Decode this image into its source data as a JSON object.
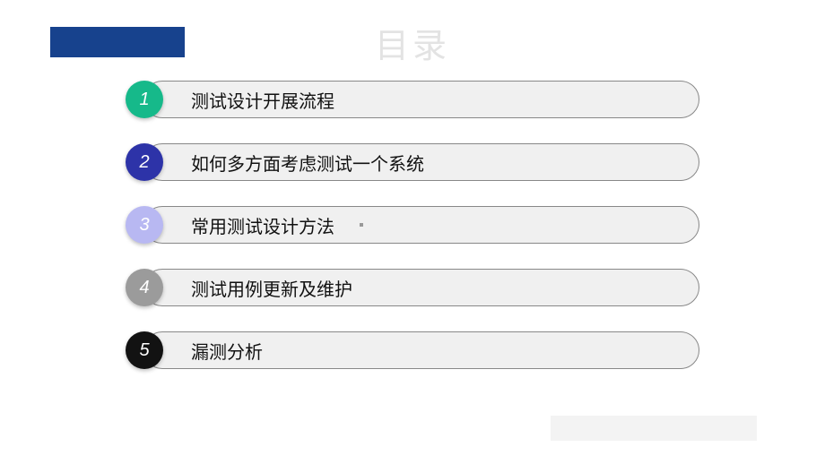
{
  "header": {
    "bar_color": "#17428d",
    "title": "目录",
    "title_color": "#e3e3e3"
  },
  "toc": {
    "pill_bg": "#f0f0f0",
    "pill_border": "#888888",
    "items": [
      {
        "num": "1",
        "label": "测试设计开展流程",
        "circle_color": "#16b98a"
      },
      {
        "num": "2",
        "label": "如何多方面考虑测试一个系统",
        "circle_color": "#2d33a8"
      },
      {
        "num": "3",
        "label": "常用测试设计方法",
        "circle_color": "#b8b8f2",
        "has_dot": true
      },
      {
        "num": "4",
        "label": "测试用例更新及维护",
        "circle_color": "#9b9b9b"
      },
      {
        "num": "5",
        "label": "漏测分析",
        "circle_color": "#121212"
      }
    ]
  },
  "footer": {
    "block_color": "#f3f3f3"
  }
}
